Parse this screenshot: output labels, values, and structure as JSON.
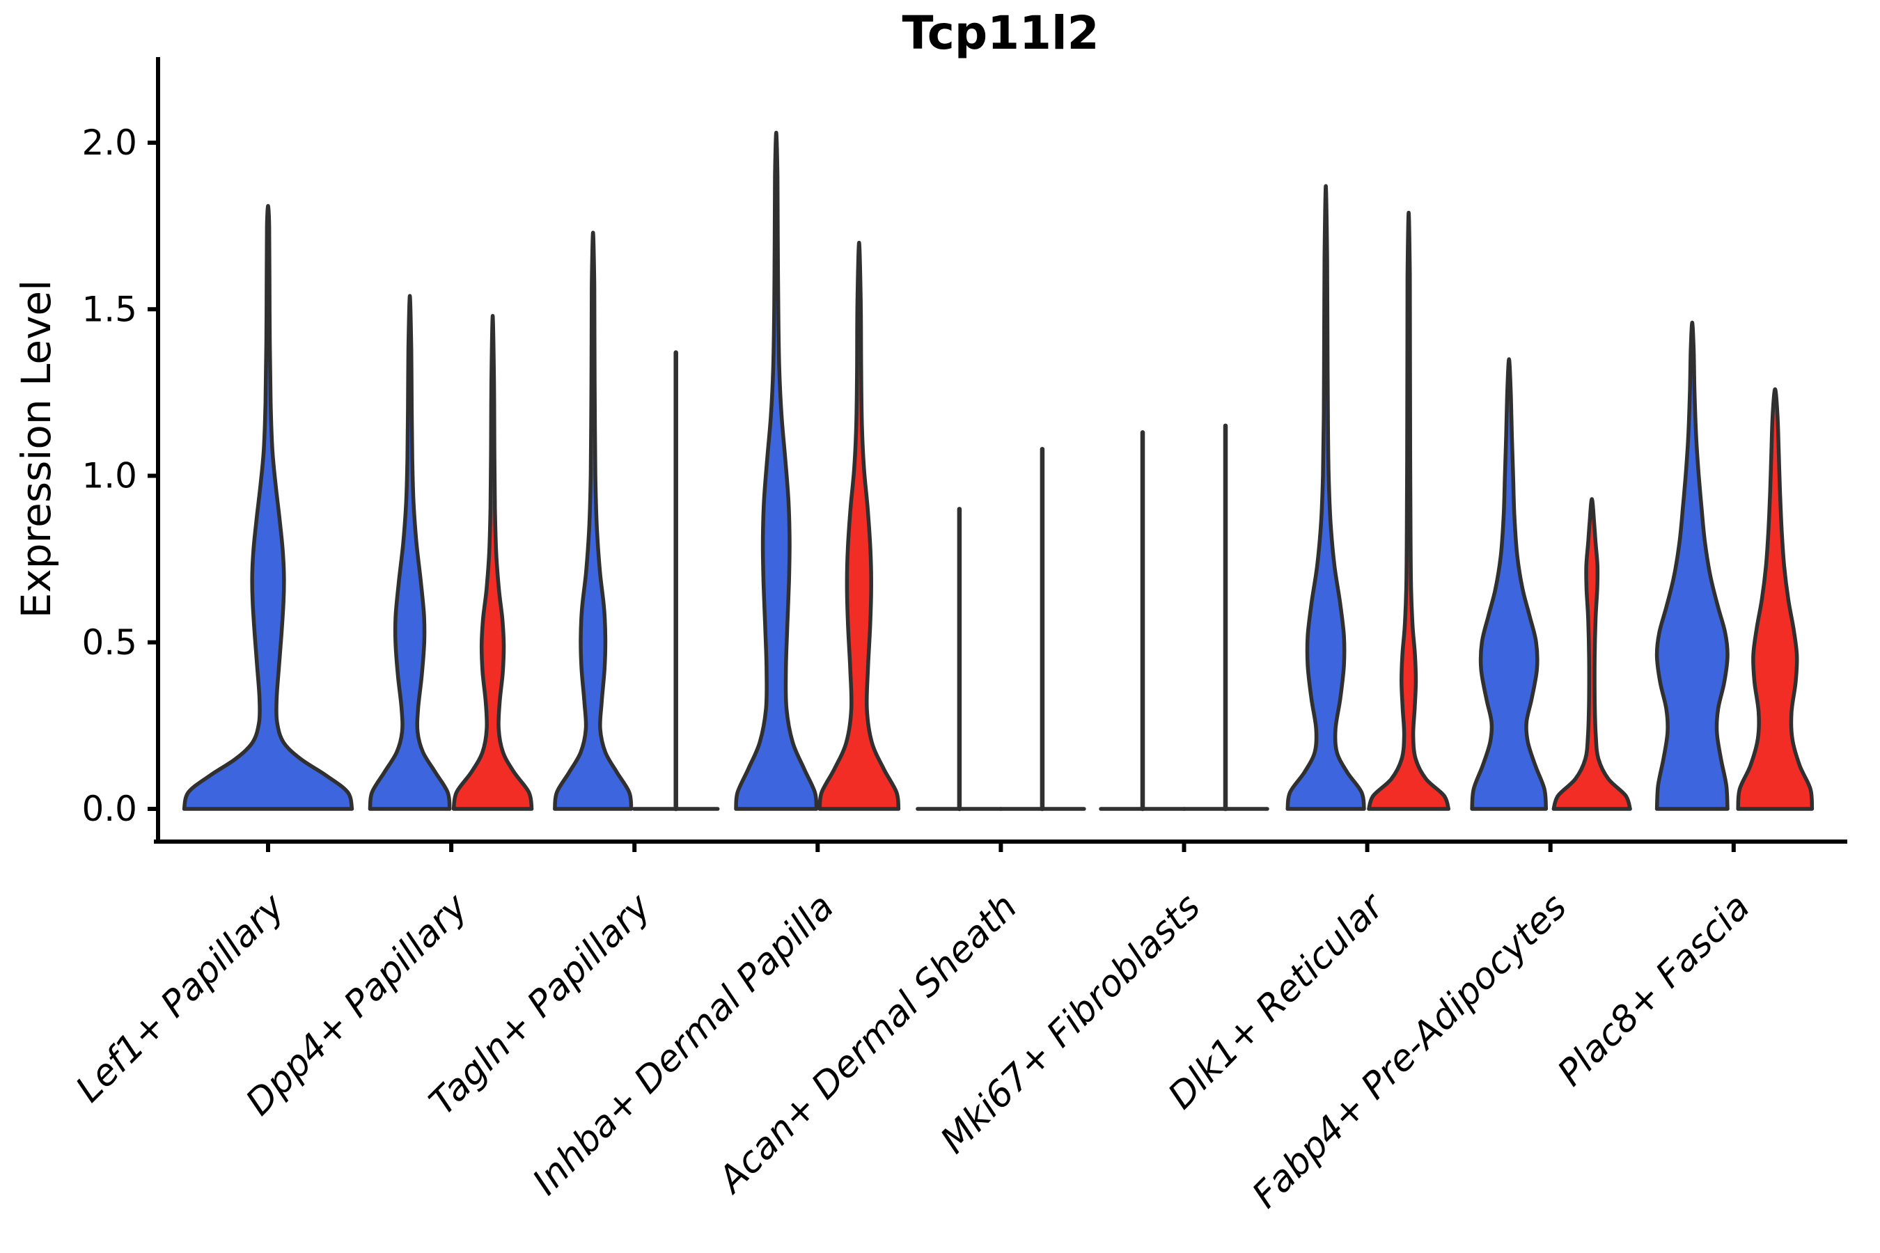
{
  "title": "Tcp11l2",
  "y_axis": {
    "label": "Expression Level",
    "ticks": [
      "0.0",
      "0.5",
      "1.0",
      "1.5",
      "2.0"
    ],
    "tick_values": [
      0.0,
      0.5,
      1.0,
      1.5,
      2.0
    ]
  },
  "x_axis": {
    "categories": [
      "Lef1+ Papillary",
      "Dpp4+ Papillary",
      "Tagln+ Papillary",
      "Inhba+ Dermal Papilla",
      "Acan+ Dermal Sheath",
      "Mki67+ Fibroblasts",
      "Dlk1+ Reticular",
      "Fabp4+ Pre-Adipocytes",
      "Plac8+ Fascia"
    ],
    "label": ""
  },
  "chart_data": {
    "type": "violin",
    "title": "Tcp11l2",
    "xlabel": "",
    "ylabel": "Expression Level",
    "ylim": [
      -0.1,
      2.25
    ],
    "yticks": [
      0.0,
      0.5,
      1.0,
      1.5,
      2.0
    ],
    "grid": false,
    "legend": "none",
    "categories": [
      "Lef1+ Papillary",
      "Dpp4+ Papillary",
      "Tagln+ Papillary",
      "Inhba+ Dermal Papilla",
      "Acan+ Dermal Sheath",
      "Mki67+ Fibroblasts",
      "Dlk1+ Reticular",
      "Fabp4+ Pre-Adipocytes",
      "Plac8+ Fascia"
    ],
    "hue_colors": {
      "blue": "#3D66DE",
      "red": "#F22D26"
    },
    "outline_color": "#303030",
    "axis_color": "#000000",
    "groups": [
      {
        "category": "Lef1+ Papillary",
        "violins": [
          {
            "hue": "blue",
            "style": "density",
            "max_expression": 1.81,
            "solo": true,
            "profile": [
              [
                0,
                0.98
              ],
              [
                0.05,
                0.93
              ],
              [
                0.1,
                0.68
              ],
              [
                0.15,
                0.38
              ],
              [
                0.2,
                0.18
              ],
              [
                0.26,
                0.105
              ],
              [
                0.33,
                0.1
              ],
              [
                0.42,
                0.125
              ],
              [
                0.52,
                0.155
              ],
              [
                0.62,
                0.18
              ],
              [
                0.7,
                0.185
              ],
              [
                0.78,
                0.17
              ],
              [
                0.88,
                0.13
              ],
              [
                0.98,
                0.085
              ],
              [
                1.08,
                0.05
              ],
              [
                1.22,
                0.03
              ],
              [
                1.4,
                0.02
              ],
              [
                1.6,
                0.016
              ],
              [
                1.75,
                0.013
              ],
              [
                1.81,
                0
              ]
            ]
          }
        ]
      },
      {
        "category": "Dpp4+ Papillary",
        "violins": [
          {
            "hue": "blue",
            "style": "density",
            "max_expression": 1.54,
            "profile": [
              [
                0,
                0.97
              ],
              [
                0.05,
                0.92
              ],
              [
                0.11,
                0.62
              ],
              [
                0.17,
                0.32
              ],
              [
                0.23,
                0.19
              ],
              [
                0.3,
                0.2
              ],
              [
                0.4,
                0.29
              ],
              [
                0.5,
                0.35
              ],
              [
                0.58,
                0.345
              ],
              [
                0.68,
                0.27
              ],
              [
                0.8,
                0.16
              ],
              [
                0.92,
                0.09
              ],
              [
                1.05,
                0.06
              ],
              [
                1.2,
                0.045
              ],
              [
                1.38,
                0.035
              ],
              [
                1.54,
                0
              ]
            ]
          },
          {
            "hue": "red",
            "style": "density",
            "max_expression": 1.48,
            "profile": [
              [
                0,
                0.95
              ],
              [
                0.05,
                0.88
              ],
              [
                0.11,
                0.52
              ],
              [
                0.17,
                0.25
              ],
              [
                0.24,
                0.145
              ],
              [
                0.32,
                0.17
              ],
              [
                0.41,
                0.245
              ],
              [
                0.49,
                0.27
              ],
              [
                0.57,
                0.235
              ],
              [
                0.66,
                0.15
              ],
              [
                0.77,
                0.085
              ],
              [
                0.9,
                0.055
              ],
              [
                1.08,
                0.04
              ],
              [
                1.28,
                0.032
              ],
              [
                1.48,
                0
              ]
            ]
          }
        ]
      },
      {
        "category": "Tagln+ Papillary",
        "violins": [
          {
            "hue": "blue",
            "style": "density",
            "max_expression": 1.73,
            "profile": [
              [
                0,
                0.93
              ],
              [
                0.05,
                0.88
              ],
              [
                0.11,
                0.58
              ],
              [
                0.17,
                0.3
              ],
              [
                0.24,
                0.175
              ],
              [
                0.32,
                0.21
              ],
              [
                0.42,
                0.28
              ],
              [
                0.51,
                0.3
              ],
              [
                0.6,
                0.27
              ],
              [
                0.71,
                0.17
              ],
              [
                0.84,
                0.095
              ],
              [
                0.98,
                0.06
              ],
              [
                1.15,
                0.045
              ],
              [
                1.4,
                0.035
              ],
              [
                1.58,
                0.03
              ],
              [
                1.73,
                0
              ]
            ]
          },
          {
            "hue": "red",
            "style": "line",
            "max_expression": 1.37
          }
        ]
      },
      {
        "category": "Inhba+ Dermal Papilla",
        "violins": [
          {
            "hue": "blue",
            "style": "density",
            "max_expression": 2.03,
            "profile": [
              [
                0,
                0.98
              ],
              [
                0.05,
                0.94
              ],
              [
                0.12,
                0.68
              ],
              [
                0.2,
                0.4
              ],
              [
                0.3,
                0.25
              ],
              [
                0.42,
                0.235
              ],
              [
                0.55,
                0.27
              ],
              [
                0.68,
                0.31
              ],
              [
                0.8,
                0.325
              ],
              [
                0.92,
                0.3
              ],
              [
                1.05,
                0.22
              ],
              [
                1.18,
                0.13
              ],
              [
                1.32,
                0.075
              ],
              [
                1.5,
                0.05
              ],
              [
                1.72,
                0.038
              ],
              [
                1.9,
                0.03
              ],
              [
                2.03,
                0
              ]
            ]
          },
          {
            "hue": "red",
            "style": "density",
            "max_expression": 1.7,
            "profile": [
              [
                0,
                0.96
              ],
              [
                0.05,
                0.91
              ],
              [
                0.12,
                0.6
              ],
              [
                0.2,
                0.31
              ],
              [
                0.3,
                0.19
              ],
              [
                0.42,
                0.215
              ],
              [
                0.55,
                0.27
              ],
              [
                0.67,
                0.295
              ],
              [
                0.78,
                0.275
              ],
              [
                0.9,
                0.21
              ],
              [
                1.02,
                0.12
              ],
              [
                1.15,
                0.07
              ],
              [
                1.32,
                0.05
              ],
              [
                1.52,
                0.04
              ],
              [
                1.7,
                0
              ]
            ]
          }
        ]
      },
      {
        "category": "Acan+ Dermal Sheath",
        "violins": [
          {
            "hue": "blue",
            "style": "line",
            "max_expression": 0.9
          },
          {
            "hue": "red",
            "style": "line",
            "max_expression": 1.08
          }
        ]
      },
      {
        "category": "Mki67+ Fibroblasts",
        "violins": [
          {
            "hue": "blue",
            "style": "line",
            "max_expression": 1.13
          },
          {
            "hue": "red",
            "style": "line",
            "max_expression": 1.15
          }
        ]
      },
      {
        "category": "Dlk1+ Reticular",
        "violins": [
          {
            "hue": "blue",
            "style": "density",
            "max_expression": 1.87,
            "profile": [
              [
                0,
                0.93
              ],
              [
                0.05,
                0.87
              ],
              [
                0.11,
                0.52
              ],
              [
                0.17,
                0.27
              ],
              [
                0.24,
                0.235
              ],
              [
                0.33,
                0.35
              ],
              [
                0.43,
                0.44
              ],
              [
                0.52,
                0.44
              ],
              [
                0.62,
                0.345
              ],
              [
                0.73,
                0.21
              ],
              [
                0.86,
                0.115
              ],
              [
                1.0,
                0.07
              ],
              [
                1.18,
                0.05
              ],
              [
                1.42,
                0.04
              ],
              [
                1.65,
                0.032
              ],
              [
                1.87,
                0
              ]
            ]
          },
          {
            "hue": "red",
            "style": "density",
            "max_expression": 1.79,
            "profile": [
              [
                0,
                0.97
              ],
              [
                0.04,
                0.86
              ],
              [
                0.09,
                0.42
              ],
              [
                0.15,
                0.17
              ],
              [
                0.22,
                0.11
              ],
              [
                0.3,
                0.145
              ],
              [
                0.38,
                0.175
              ],
              [
                0.46,
                0.155
              ],
              [
                0.55,
                0.095
              ],
              [
                0.66,
                0.06
              ],
              [
                0.82,
                0.045
              ],
              [
                1.05,
                0.038
              ],
              [
                1.35,
                0.032
              ],
              [
                1.6,
                0.028
              ],
              [
                1.79,
                0
              ]
            ]
          }
        ]
      },
      {
        "category": "Fabp4+ Pre-Adipocytes",
        "violins": [
          {
            "hue": "blue",
            "style": "density",
            "max_expression": 1.35,
            "profile": [
              [
                0,
                0.9
              ],
              [
                0.06,
                0.86
              ],
              [
                0.13,
                0.64
              ],
              [
                0.2,
                0.46
              ],
              [
                0.26,
                0.425
              ],
              [
                0.33,
                0.55
              ],
              [
                0.42,
                0.68
              ],
              [
                0.5,
                0.66
              ],
              [
                0.58,
                0.5
              ],
              [
                0.66,
                0.33
              ],
              [
                0.76,
                0.2
              ],
              [
                0.88,
                0.13
              ],
              [
                1.0,
                0.1
              ],
              [
                1.12,
                0.07
              ],
              [
                1.24,
                0.045
              ],
              [
                1.35,
                0
              ]
            ]
          },
          {
            "hue": "red",
            "style": "density",
            "max_expression": 0.93,
            "profile": [
              [
                0,
                0.93
              ],
              [
                0.04,
                0.82
              ],
              [
                0.09,
                0.4
              ],
              [
                0.15,
                0.16
              ],
              [
                0.22,
                0.095
              ],
              [
                0.32,
                0.07
              ],
              [
                0.45,
                0.068
              ],
              [
                0.57,
                0.09
              ],
              [
                0.66,
                0.13
              ],
              [
                0.73,
                0.135
              ],
              [
                0.8,
                0.09
              ],
              [
                0.86,
                0.055
              ],
              [
                0.93,
                0
              ]
            ]
          }
        ]
      },
      {
        "category": "Plac8+ Fascia",
        "violins": [
          {
            "hue": "blue",
            "style": "density",
            "max_expression": 1.46,
            "profile": [
              [
                0,
                0.86
              ],
              [
                0.07,
                0.83
              ],
              [
                0.15,
                0.7
              ],
              [
                0.23,
                0.6
              ],
              [
                0.3,
                0.63
              ],
              [
                0.38,
                0.78
              ],
              [
                0.46,
                0.86
              ],
              [
                0.53,
                0.8
              ],
              [
                0.61,
                0.62
              ],
              [
                0.7,
                0.44
              ],
              [
                0.8,
                0.31
              ],
              [
                0.9,
                0.23
              ],
              [
                1.0,
                0.16
              ],
              [
                1.12,
                0.095
              ],
              [
                1.26,
                0.055
              ],
              [
                1.38,
                0.035
              ],
              [
                1.46,
                0
              ]
            ]
          },
          {
            "hue": "red",
            "style": "density",
            "max_expression": 1.26,
            "profile": [
              [
                0,
                0.9
              ],
              [
                0.06,
                0.86
              ],
              [
                0.13,
                0.6
              ],
              [
                0.21,
                0.42
              ],
              [
                0.29,
                0.4
              ],
              [
                0.38,
                0.5
              ],
              [
                0.46,
                0.53
              ],
              [
                0.54,
                0.45
              ],
              [
                0.63,
                0.32
              ],
              [
                0.73,
                0.22
              ],
              [
                0.84,
                0.16
              ],
              [
                0.95,
                0.12
              ],
              [
                1.07,
                0.09
              ],
              [
                1.18,
                0.06
              ],
              [
                1.26,
                0
              ]
            ]
          }
        ]
      }
    ]
  }
}
